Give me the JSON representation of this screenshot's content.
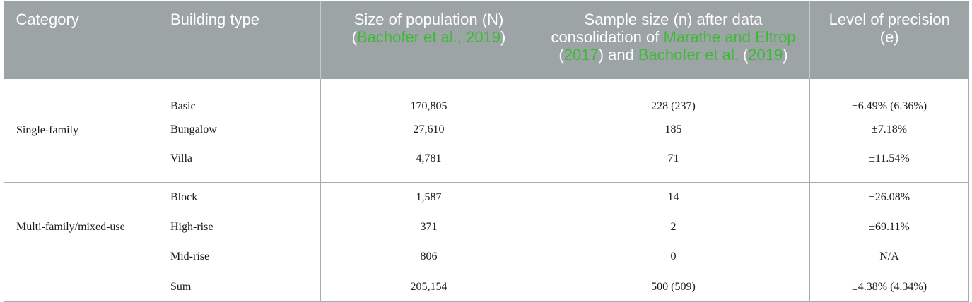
{
  "header": {
    "category": "Category",
    "building_type": "Building type",
    "population_text": "Size of population (N)",
    "population_paren_open": "(",
    "population_cite": "Bachofer et al., 2019",
    "population_paren_close": ")",
    "sample_text_1": "Sample size (n) after data consolidation of ",
    "sample_cite_1": "Marathe and Eltrop",
    "sample_text_2": " (",
    "sample_cite_year": "2017",
    "sample_text_3": ") and ",
    "sample_cite_2": "Bachofer et al.",
    "sample_text_4": " (",
    "sample_cite_2_year": "2019",
    "sample_text_5": ")",
    "precision": "Level of precision (e)"
  },
  "groups": {
    "single_family": "Single-family",
    "multi_family": "Multi-family/mixed-use"
  },
  "rows": [
    {
      "type": "Basic",
      "population": "170,805",
      "sample": "228 (237)",
      "precision": "±6.49% (6.36%)"
    },
    {
      "type": "Bungalow",
      "population": "27,610",
      "sample": "185",
      "precision": "±7.18%"
    },
    {
      "type": "Villa",
      "population": "4,781",
      "sample": "71",
      "precision": "±11.54%"
    },
    {
      "type": "Block",
      "population": "1,587",
      "sample": "14",
      "precision": "±26.08%"
    },
    {
      "type": "High-rise",
      "population": "371",
      "sample": "2",
      "precision": "±69.11%"
    },
    {
      "type": "Mid-rise",
      "population": "806",
      "sample": "0",
      "precision": "N/A"
    }
  ],
  "sum": {
    "type": "Sum",
    "population": "205,154",
    "sample": "500 (509)",
    "precision": "±4.38% (4.34%)"
  }
}
